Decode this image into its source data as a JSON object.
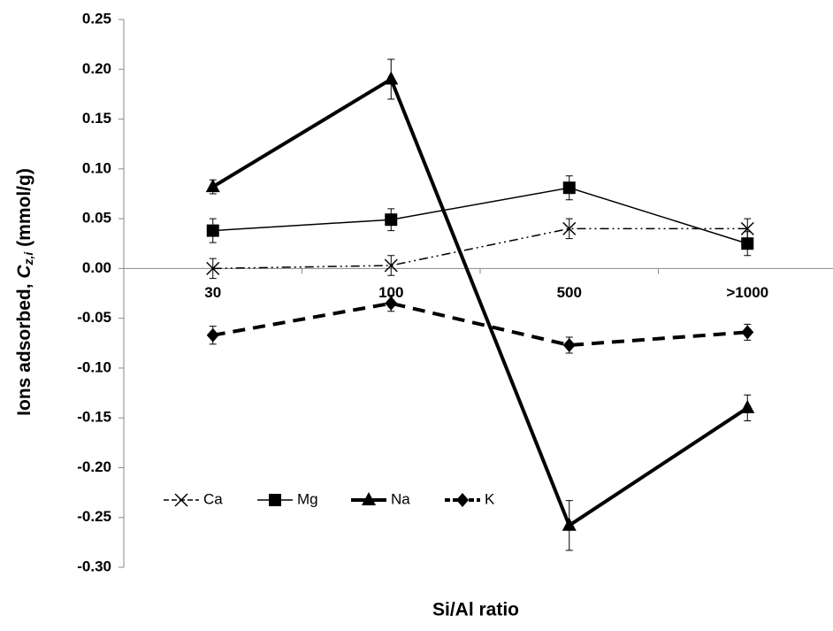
{
  "chart_data": {
    "type": "line",
    "x_label": "Si/Al ratio",
    "y_label": {
      "prefix": "Ions adsorbed, ",
      "symbol": "C",
      "subscript": "z,i",
      "suffix": " (mmol/g)"
    },
    "categories": [
      "30",
      "100",
      "500",
      ">1000"
    ],
    "ylim": [
      -0.3,
      0.25
    ],
    "yticks": [
      {
        "value": -0.3,
        "label": "-0.30"
      },
      -0.25,
      {
        "value": -0.2,
        "label": "-0.20"
      },
      -0.15,
      {
        "value": -0.1,
        "label": "-0.10"
      },
      -0.05,
      {
        "value": 0,
        "label": "0.00"
      },
      0.05,
      {
        "value": 0.1,
        "label": "0.10"
      },
      0.15,
      {
        "value": 0.2,
        "label": "0.20"
      },
      0.25
    ],
    "legend": "lower left",
    "series": [
      {
        "name": "Ca",
        "color": "#000000",
        "marker": "x",
        "line_width": 1.5,
        "dash": "10 4 2 4 2 4",
        "values": [
          0.0,
          0.003,
          0.04,
          0.04
        ],
        "errors": [
          0.01,
          0.01,
          0.01,
          0.01
        ]
      },
      {
        "name": "Mg",
        "color": "#000000",
        "marker": "square",
        "line_width": 1.5,
        "dash": "none",
        "values": [
          0.038,
          0.049,
          0.081,
          0.025
        ],
        "errors": [
          0.012,
          0.011,
          0.012,
          0.012
        ]
      },
      {
        "name": "Na",
        "color": "#000000",
        "marker": "triangle",
        "line_width": 4,
        "dash": "none",
        "values": [
          0.082,
          0.19,
          -0.258,
          -0.14
        ],
        "errors": [
          0.007,
          0.02,
          0.025,
          0.013
        ]
      },
      {
        "name": "K",
        "color": "#000000",
        "marker": "diamond",
        "line_width": 4,
        "dash": "14 9",
        "values": [
          -0.067,
          -0.035,
          -0.077,
          -0.064
        ],
        "errors": [
          0.009,
          0.008,
          0.008,
          0.008
        ]
      }
    ]
  }
}
